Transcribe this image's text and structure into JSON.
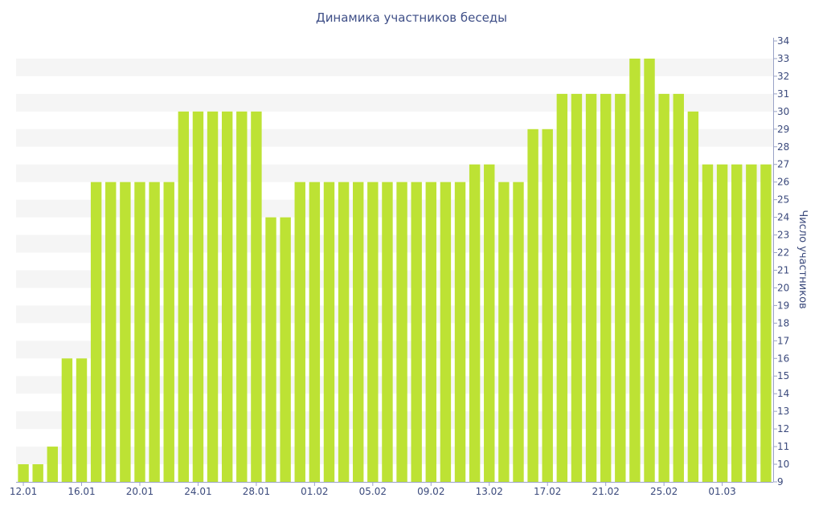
{
  "chart_data": {
    "type": "bar",
    "title": "Динамика участников беседы",
    "xlabel": "",
    "ylabel": "Число участников",
    "ylim": [
      9,
      34
    ],
    "y_axis_side": "right",
    "grid": "alternating horizontal bands",
    "categories": [
      "12.01",
      "13.01",
      "14.01",
      "15.01",
      "16.01",
      "17.01",
      "18.01",
      "19.01",
      "20.01",
      "21.01",
      "22.01",
      "23.01",
      "24.01",
      "25.01",
      "26.01",
      "27.01",
      "28.01",
      "29.01",
      "30.01",
      "31.01",
      "01.02",
      "02.02",
      "03.02",
      "04.02",
      "05.02",
      "06.02",
      "07.02",
      "08.02",
      "09.02",
      "10.02",
      "11.02",
      "12.02",
      "13.02",
      "14.02",
      "15.02",
      "16.02",
      "17.02",
      "18.02",
      "19.02",
      "20.02",
      "21.02",
      "22.02",
      "23.02",
      "24.02",
      "25.02",
      "26.02",
      "27.02",
      "28.02",
      "01.03",
      "02.03",
      "03.03",
      "04.03"
    ],
    "x_tick_labels": [
      "12.01",
      "16.01",
      "20.01",
      "24.01",
      "28.01",
      "01.02",
      "05.02",
      "09.02",
      "13.02",
      "17.02",
      "21.02",
      "25.02",
      "01.03"
    ],
    "y_ticks": [
      9,
      10,
      11,
      12,
      13,
      14,
      15,
      16,
      17,
      18,
      19,
      20,
      21,
      22,
      23,
      24,
      25,
      26,
      27,
      28,
      29,
      30,
      31,
      32,
      33,
      34
    ],
    "series": [
      {
        "color": "#bde234",
        "values": [
          10,
          10,
          11,
          16,
          16,
          26,
          26,
          26,
          26,
          26,
          26,
          30,
          30,
          30,
          30,
          30,
          30,
          24,
          24,
          26,
          26,
          26,
          26,
          26,
          26,
          26,
          26,
          26,
          26,
          26,
          26,
          27,
          27,
          26,
          26,
          29,
          29,
          31,
          31,
          31,
          31,
          31,
          33,
          33,
          31,
          31,
          30,
          27,
          27,
          27,
          27,
          27
        ]
      }
    ]
  }
}
